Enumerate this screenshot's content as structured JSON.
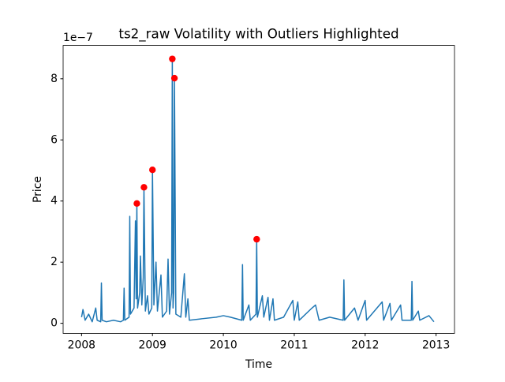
{
  "chart_data": {
    "type": "line",
    "title": "ts2_raw Volatility with Outliers Highlighted",
    "xlabel": "Time",
    "ylabel": "Price",
    "offset_text": "1e−7",
    "color": "#1f77b4",
    "x": [
      2008.0,
      2008.02,
      2008.05,
      2008.1,
      2008.15,
      2008.2,
      2008.22,
      2008.27,
      2008.28,
      2008.29,
      2008.35,
      2008.45,
      2008.55,
      2008.59,
      2008.6,
      2008.61,
      2008.67,
      2008.68,
      2008.69,
      2008.74,
      2008.76,
      2008.77,
      2008.78,
      2008.79,
      2008.82,
      2008.83,
      2008.85,
      2008.87,
      2008.88,
      2008.9,
      2008.93,
      2008.95,
      2008.99,
      2009.0,
      2009.02,
      2009.05,
      2009.07,
      2009.12,
      2009.14,
      2009.2,
      2009.22,
      2009.24,
      2009.27,
      2009.28,
      2009.29,
      2009.3,
      2009.31,
      2009.33,
      2009.4,
      2009.45,
      2009.47,
      2009.5,
      2009.52,
      2009.7,
      2009.9,
      2010.0,
      2010.1,
      2010.26,
      2010.27,
      2010.28,
      2010.36,
      2010.38,
      2010.46,
      2010.47,
      2010.48,
      2010.55,
      2010.57,
      2010.63,
      2010.65,
      2010.7,
      2010.72,
      2010.85,
      2010.98,
      2011.0,
      2011.05,
      2011.07,
      2011.25,
      2011.3,
      2011.35,
      2011.5,
      2011.69,
      2011.7,
      2011.71,
      2011.85,
      2011.9,
      2012.0,
      2012.02,
      2012.24,
      2012.26,
      2012.35,
      2012.37,
      2012.5,
      2012.52,
      2012.65,
      2012.66,
      2012.67,
      2012.75,
      2012.77,
      2012.9,
      2012.97
    ],
    "values": [
      0.2,
      0.45,
      0.1,
      0.3,
      0.05,
      0.5,
      0.1,
      0.05,
      1.32,
      0.1,
      0.05,
      0.1,
      0.05,
      0.1,
      1.15,
      0.1,
      0.2,
      3.5,
      0.3,
      0.5,
      3.35,
      0.8,
      3.92,
      0.5,
      1.0,
      2.2,
      0.6,
      1.5,
      4.45,
      0.4,
      0.9,
      0.3,
      0.5,
      5.02,
      0.6,
      2.0,
      0.4,
      1.58,
      0.2,
      0.4,
      2.1,
      0.3,
      1.0,
      8.65,
      0.5,
      1.0,
      8.02,
      0.3,
      0.2,
      1.62,
      0.2,
      0.8,
      0.1,
      0.15,
      0.2,
      0.25,
      0.2,
      0.1,
      1.92,
      0.1,
      0.6,
      0.1,
      0.3,
      2.75,
      0.2,
      0.9,
      0.2,
      0.85,
      0.1,
      0.8,
      0.1,
      0.2,
      0.75,
      0.1,
      0.7,
      0.1,
      0.5,
      0.6,
      0.1,
      0.2,
      0.1,
      1.42,
      0.1,
      0.5,
      0.1,
      0.75,
      0.1,
      0.7,
      0.1,
      0.65,
      0.1,
      0.6,
      0.1,
      0.1,
      1.37,
      0.1,
      0.4,
      0.1,
      0.25,
      0.05
    ],
    "outliers": {
      "color": "#ff0000",
      "x": [
        2008.78,
        2008.88,
        2009.0,
        2009.28,
        2009.31,
        2010.47
      ],
      "values": [
        3.92,
        4.45,
        5.02,
        8.65,
        8.02,
        2.75
      ]
    },
    "xlim": [
      2007.74,
      2013.26
    ],
    "xticks": [
      2008,
      2009,
      2010,
      2011,
      2012,
      2013
    ],
    "ylim": [
      -0.33,
      9.09
    ],
    "yticks": [
      0,
      2,
      4,
      6,
      8
    ]
  }
}
